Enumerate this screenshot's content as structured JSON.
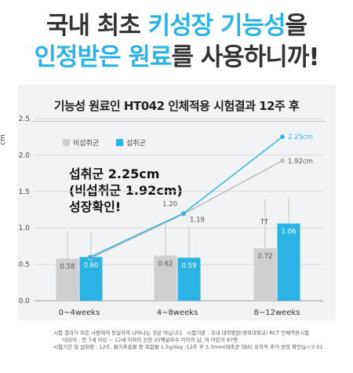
{
  "headline": {
    "line1_part1": "국내 최초 ",
    "line1_part2": "키성장 기능성",
    "line1_part3": "을",
    "line2_part1": "인정받은 원료",
    "line2_part2": "를 사용하니까!"
  },
  "colors": {
    "control": "#cfcfcf",
    "treatment": "#2cb3e6",
    "control_line": "#bdbdbd",
    "headline_blue": "#2cb3e6",
    "headline_dark": "#333333",
    "card_bg": "#f2f3f5"
  },
  "callout": {
    "line1": "섭취군 2.25cm",
    "line2": "(비섭취군 1.92cm)",
    "line3": "성장확인!"
  },
  "significance_mark": "††",
  "chart_data": {
    "type": "bar",
    "title": "기능성 원료인 HT042 인체적용 시험결과 12주 후",
    "ylabel": "cm",
    "ylim": [
      0,
      2.5
    ],
    "yticks": [
      "0.0",
      "0.5",
      "1.0",
      "1.5",
      "2.0",
      "2.5"
    ],
    "grid": true,
    "legend_position": "top-left",
    "categories": [
      "0~4weeks",
      "4~8weeks",
      "8~12weeks"
    ],
    "series": [
      {
        "name": "비섭취군",
        "values": [
          0.58,
          0.62,
          0.72
        ],
        "labels": [
          "0.58",
          "0.62",
          "0.72"
        ],
        "error_high": [
          0.95,
          1.05,
          1.4
        ]
      },
      {
        "name": "섭취군",
        "values": [
          0.6,
          0.59,
          1.06
        ],
        "labels": [
          "0.60",
          "0.59",
          "1.06"
        ],
        "error_high": [
          0.95,
          1.02,
          1.42
        ]
      }
    ],
    "cumulative_lines": [
      {
        "name": "비섭취군",
        "values": [
          0.58,
          1.19,
          1.92
        ],
        "labels": [
          "",
          "1.19",
          "1.92cm"
        ]
      },
      {
        "name": "섭취군",
        "values": [
          0.6,
          1.2,
          2.25
        ],
        "labels": [
          "",
          "1.20",
          "2.25cm"
        ]
      }
    ]
  },
  "footnotes": {
    "line1": "·시험 결과가 모든 사람에게 동일하게 나타나는 것은 아닙니다.  ·시험기관 : 국내 대학병원(경희대학교) RCT 인체적용시험",
    "line1b": "·대상자 : 만 7세 이상 ~ 12세 이하의 신장 25백분위수 이하의 남, 여 어린이 97명",
    "line2": "·시험기간 및 섭취량 : 12주, 황기추출물 등 복합물 1.5g/day  ·12주 후 3.3mm(대조군 대비) 유의적 추가 성장 확인(p＜0.01"
  }
}
